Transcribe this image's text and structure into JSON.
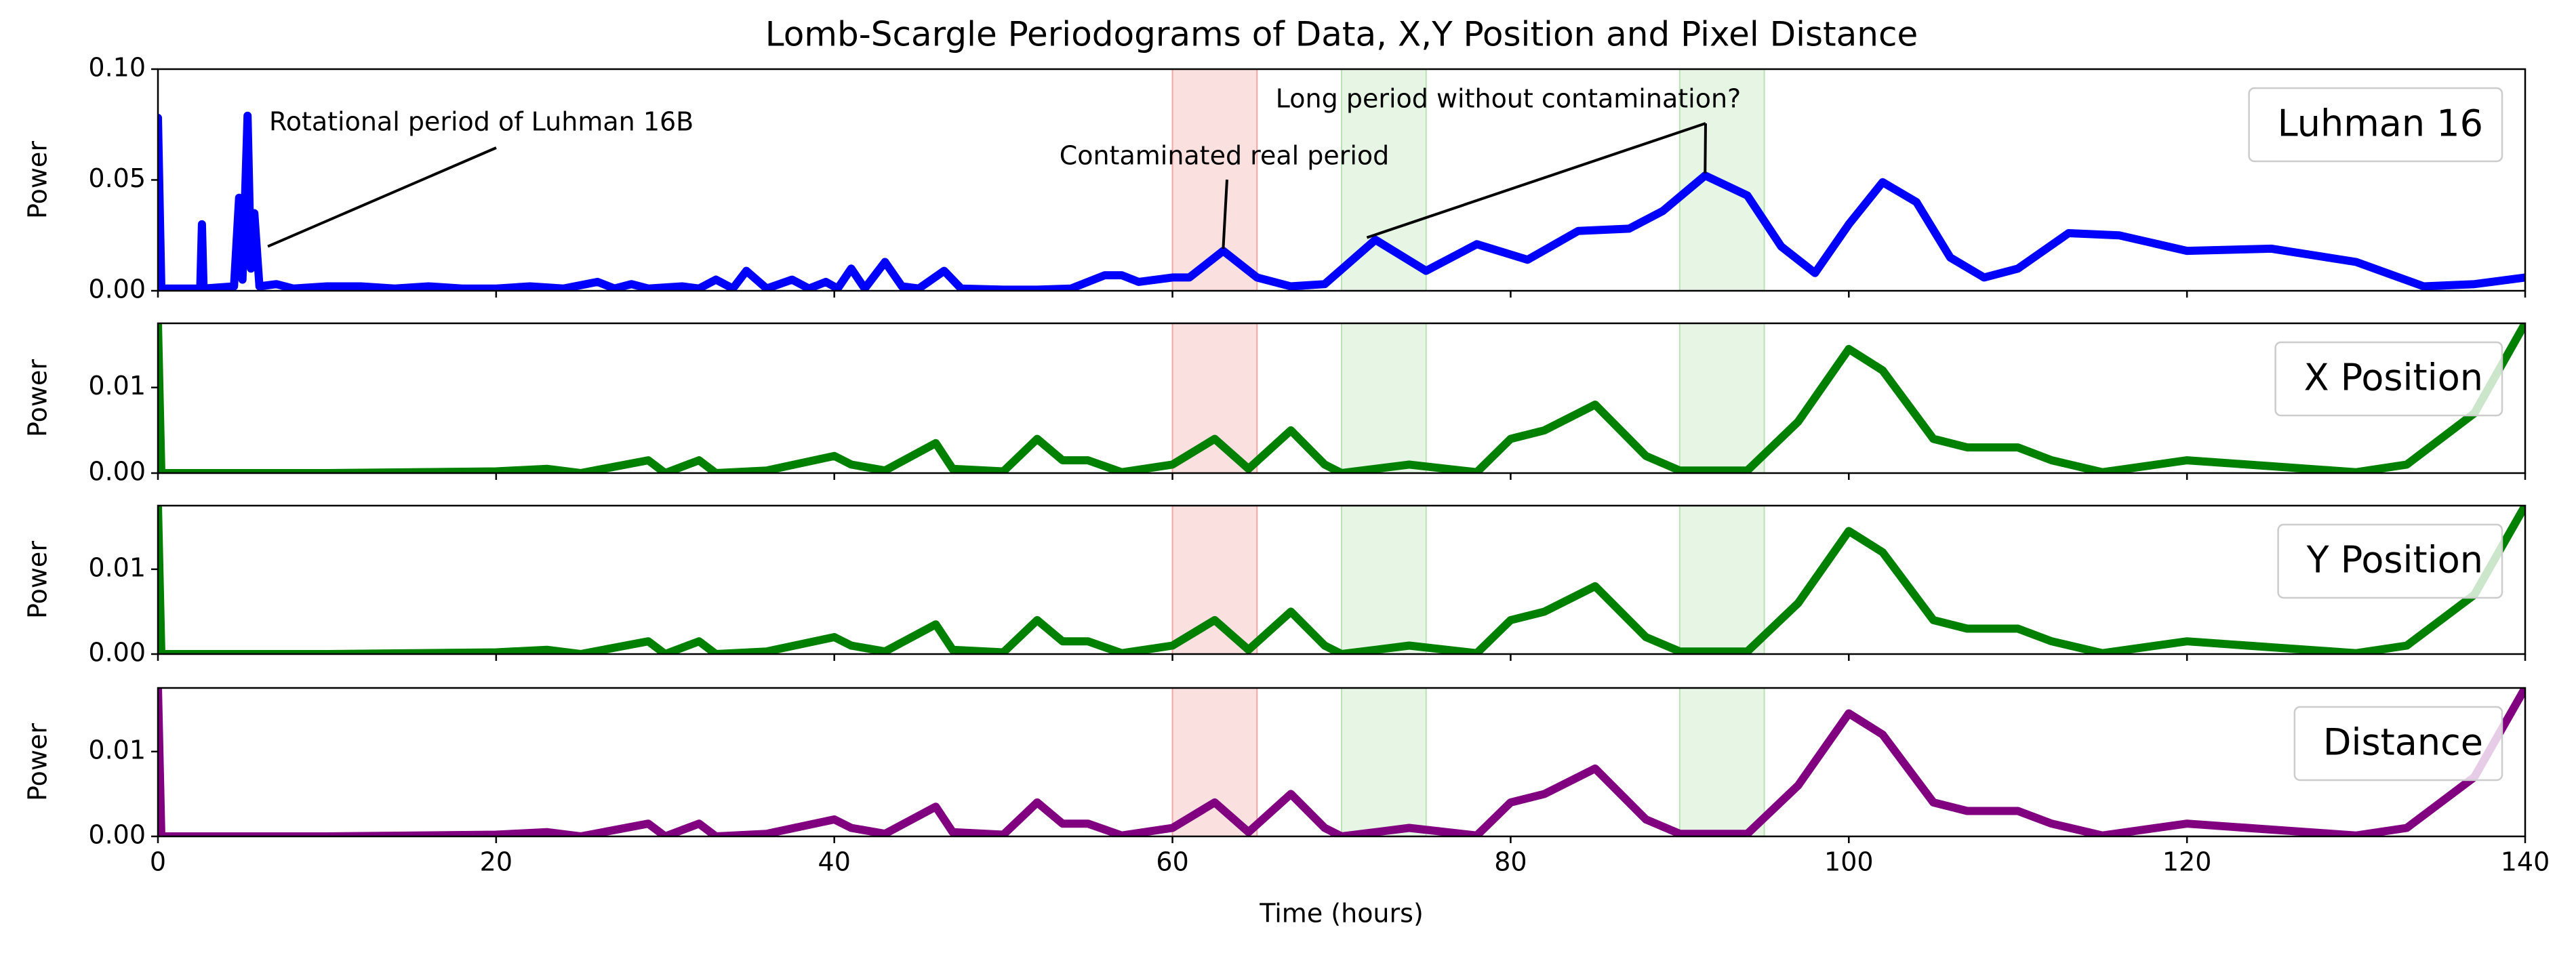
{
  "chart_data": [
    {
      "type": "line",
      "title": "Lomb-Scargle Periodograms of Data, X,Y Position and Pixel Distance",
      "ylabel": "Power",
      "xlim": [
        0,
        140
      ],
      "xticks": [
        0,
        20,
        40,
        60,
        80,
        100,
        120,
        140
      ],
      "ylim": [
        0,
        0.1
      ],
      "yticks": [
        {
          "value": 0,
          "label": "0.00"
        },
        {
          "value": 0.05,
          "label": "0.05"
        },
        {
          "value": 0.1,
          "label": "0.10"
        }
      ],
      "legend": "upper right",
      "spans": [
        {
          "range": [
            60,
            65
          ],
          "color": "#f4a6a6"
        },
        {
          "range": [
            70,
            75
          ],
          "color": "#b9e3b4"
        },
        {
          "range": [
            90,
            95
          ],
          "color": "#b9e3b4"
        }
      ],
      "annotations": [
        {
          "text": "Rotational period of Luhman 16B",
          "xy": [
            [
              6.5,
              0.02
            ]
          ]
        },
        {
          "text": "Contaminated real period",
          "xy": [
            [
              63,
              0.019
            ]
          ]
        },
        {
          "text": "Long period without contamination?",
          "xy": [
            [
              71.5,
              0.024
            ],
            [
              91.5,
              0.053
            ]
          ]
        }
      ],
      "series": [
        {
          "name": "Luhman 16",
          "color": "#0000ff",
          "x": [
            0,
            0.2,
            2.5,
            2.6,
            2.7,
            4.5,
            4.8,
            5.0,
            5.3,
            5.5,
            5.7,
            6.0,
            7,
            8,
            10,
            12,
            14,
            16,
            18,
            20,
            22,
            24,
            26,
            27,
            28,
            29,
            31,
            32,
            33,
            34,
            34.8,
            36,
            37.5,
            38.5,
            39.5,
            40.2,
            41,
            41.8,
            43,
            44,
            45,
            46.5,
            47.5,
            50,
            52,
            54,
            56,
            57,
            58,
            60,
            61,
            63,
            65,
            67,
            69,
            72,
            75,
            78,
            81,
            84,
            87,
            89,
            91.5,
            94,
            96,
            98,
            100,
            102,
            104,
            106,
            108,
            110,
            113,
            116,
            120,
            125,
            130,
            134,
            137,
            140
          ],
          "values": [
            0.078,
            0.001,
            0.001,
            0.03,
            0.001,
            0.002,
            0.042,
            0.005,
            0.079,
            0.01,
            0.035,
            0.002,
            0.003,
            0.001,
            0.002,
            0.002,
            0.001,
            0.002,
            0.001,
            0.001,
            0.002,
            0.001,
            0.004,
            0.001,
            0.003,
            0.001,
            0.002,
            0.001,
            0.005,
            0.001,
            0.009,
            0.001,
            0.005,
            0.001,
            0.004,
            0.001,
            0.01,
            0.001,
            0.013,
            0.002,
            0.001,
            0.009,
            0.001,
            0.0005,
            0.0005,
            0.001,
            0.007,
            0.007,
            0.004,
            0.006,
            0.006,
            0.018,
            0.006,
            0.002,
            0.003,
            0.023,
            0.009,
            0.021,
            0.014,
            0.027,
            0.028,
            0.036,
            0.052,
            0.043,
            0.02,
            0.008,
            0.03,
            0.049,
            0.04,
            0.015,
            0.006,
            0.01,
            0.026,
            0.025,
            0.018,
            0.019,
            0.013,
            0.002,
            0.003,
            0.006
          ]
        }
      ]
    },
    {
      "type": "line",
      "ylabel": "Power",
      "xlim": [
        0,
        140
      ],
      "xticks": [
        0,
        20,
        40,
        60,
        80,
        100,
        120,
        140
      ],
      "ylim": [
        0,
        0.0175
      ],
      "yticks": [
        {
          "value": 0,
          "label": "0.00"
        },
        {
          "value": 0.01,
          "label": "0.01"
        }
      ],
      "legend": "upper right",
      "spans": [
        {
          "range": [
            60,
            65
          ],
          "color": "#f4a6a6"
        },
        {
          "range": [
            70,
            75
          ],
          "color": "#b9e3b4"
        },
        {
          "range": [
            90,
            95
          ],
          "color": "#b9e3b4"
        }
      ],
      "series": [
        {
          "name": "X Position",
          "color": "#008000",
          "x": [
            0,
            0.2,
            10,
            20,
            23,
            25,
            29,
            30,
            32,
            33,
            36,
            40,
            41,
            43,
            46,
            47,
            50,
            52,
            53.5,
            55,
            57,
            60,
            62.5,
            64.5,
            67,
            69,
            70,
            74,
            78,
            80,
            82,
            85,
            88,
            90,
            94,
            97,
            100,
            102,
            105,
            107,
            110,
            112,
            115,
            120,
            125,
            130,
            133,
            137,
            140
          ],
          "values": [
            0.0175,
            0,
            0,
            0.0002,
            0.0005,
            0,
            0.0015,
            0,
            0.0015,
            0,
            0.0003,
            0.002,
            0.001,
            0.0003,
            0.0035,
            0.0005,
            0.0002,
            0.004,
            0.0015,
            0.0015,
            0.0001,
            0.001,
            0.004,
            0.0005,
            0.005,
            0.001,
            0,
            0.001,
            0.0001,
            0.004,
            0.005,
            0.008,
            0.002,
            0.0003,
            0.0003,
            0.006,
            0.0145,
            0.012,
            0.004,
            0.003,
            0.003,
            0.0015,
            0.0001,
            0.0015,
            0.0008,
            0.0001,
            0.001,
            0.007,
            0.0175
          ]
        }
      ]
    },
    {
      "type": "line",
      "ylabel": "Power",
      "xlim": [
        0,
        140
      ],
      "xticks": [
        0,
        20,
        40,
        60,
        80,
        100,
        120,
        140
      ],
      "ylim": [
        0,
        0.0175
      ],
      "yticks": [
        {
          "value": 0,
          "label": "0.00"
        },
        {
          "value": 0.01,
          "label": "0.01"
        }
      ],
      "legend": "upper right",
      "spans": [
        {
          "range": [
            60,
            65
          ],
          "color": "#f4a6a6"
        },
        {
          "range": [
            70,
            75
          ],
          "color": "#b9e3b4"
        },
        {
          "range": [
            90,
            95
          ],
          "color": "#b9e3b4"
        }
      ],
      "series": [
        {
          "name": "Y Position",
          "color": "#008000",
          "x": [
            0,
            0.2,
            10,
            20,
            23,
            25,
            29,
            30,
            32,
            33,
            36,
            40,
            41,
            43,
            46,
            47,
            50,
            52,
            53.5,
            55,
            57,
            60,
            62.5,
            64.5,
            67,
            69,
            70,
            74,
            78,
            80,
            82,
            85,
            88,
            90,
            94,
            97,
            100,
            102,
            105,
            107,
            110,
            112,
            115,
            120,
            125,
            130,
            133,
            137,
            140
          ],
          "values": [
            0.0175,
            0,
            0,
            0.0002,
            0.0005,
            0,
            0.0015,
            0,
            0.0015,
            0,
            0.0003,
            0.002,
            0.001,
            0.0003,
            0.0035,
            0.0005,
            0.0002,
            0.004,
            0.0015,
            0.0015,
            0.0001,
            0.001,
            0.004,
            0.0005,
            0.005,
            0.001,
            0,
            0.001,
            0.0001,
            0.004,
            0.005,
            0.008,
            0.002,
            0.0003,
            0.0003,
            0.006,
            0.0145,
            0.012,
            0.004,
            0.003,
            0.003,
            0.0015,
            0.0001,
            0.0015,
            0.0008,
            0.0001,
            0.001,
            0.007,
            0.0175
          ]
        }
      ]
    },
    {
      "type": "line",
      "ylabel": "Power",
      "xlabel": "Time (hours)",
      "xlim": [
        0,
        140
      ],
      "xticks": [
        0,
        20,
        40,
        60,
        80,
        100,
        120,
        140
      ],
      "ylim": [
        0,
        0.0175
      ],
      "yticks": [
        {
          "value": 0,
          "label": "0.00"
        },
        {
          "value": 0.01,
          "label": "0.01"
        }
      ],
      "legend": "upper right",
      "spans": [
        {
          "range": [
            60,
            65
          ],
          "color": "#f4a6a6"
        },
        {
          "range": [
            70,
            75
          ],
          "color": "#b9e3b4"
        },
        {
          "range": [
            90,
            95
          ],
          "color": "#b9e3b4"
        }
      ],
      "series": [
        {
          "name": "Distance",
          "color": "#800080",
          "x": [
            0,
            0.2,
            10,
            20,
            23,
            25,
            29,
            30,
            32,
            33,
            36,
            40,
            41,
            43,
            46,
            47,
            50,
            52,
            53.5,
            55,
            57,
            60,
            62.5,
            64.5,
            67,
            69,
            70,
            74,
            78,
            80,
            82,
            85,
            88,
            90,
            94,
            97,
            100,
            102,
            105,
            107,
            110,
            112,
            115,
            120,
            125,
            130,
            133,
            137,
            140
          ],
          "values": [
            0.0175,
            0,
            0,
            0.0002,
            0.0005,
            0,
            0.0015,
            0,
            0.0015,
            0,
            0.0003,
            0.002,
            0.001,
            0.0003,
            0.0035,
            0.0005,
            0.0002,
            0.004,
            0.0015,
            0.0015,
            0.0001,
            0.001,
            0.004,
            0.0005,
            0.005,
            0.001,
            0,
            0.001,
            0.0001,
            0.004,
            0.005,
            0.008,
            0.002,
            0.0003,
            0.0003,
            0.006,
            0.0145,
            0.012,
            0.004,
            0.003,
            0.003,
            0.0015,
            0.0001,
            0.0015,
            0.0008,
            0.0001,
            0.001,
            0.007,
            0.0175
          ]
        }
      ]
    }
  ]
}
